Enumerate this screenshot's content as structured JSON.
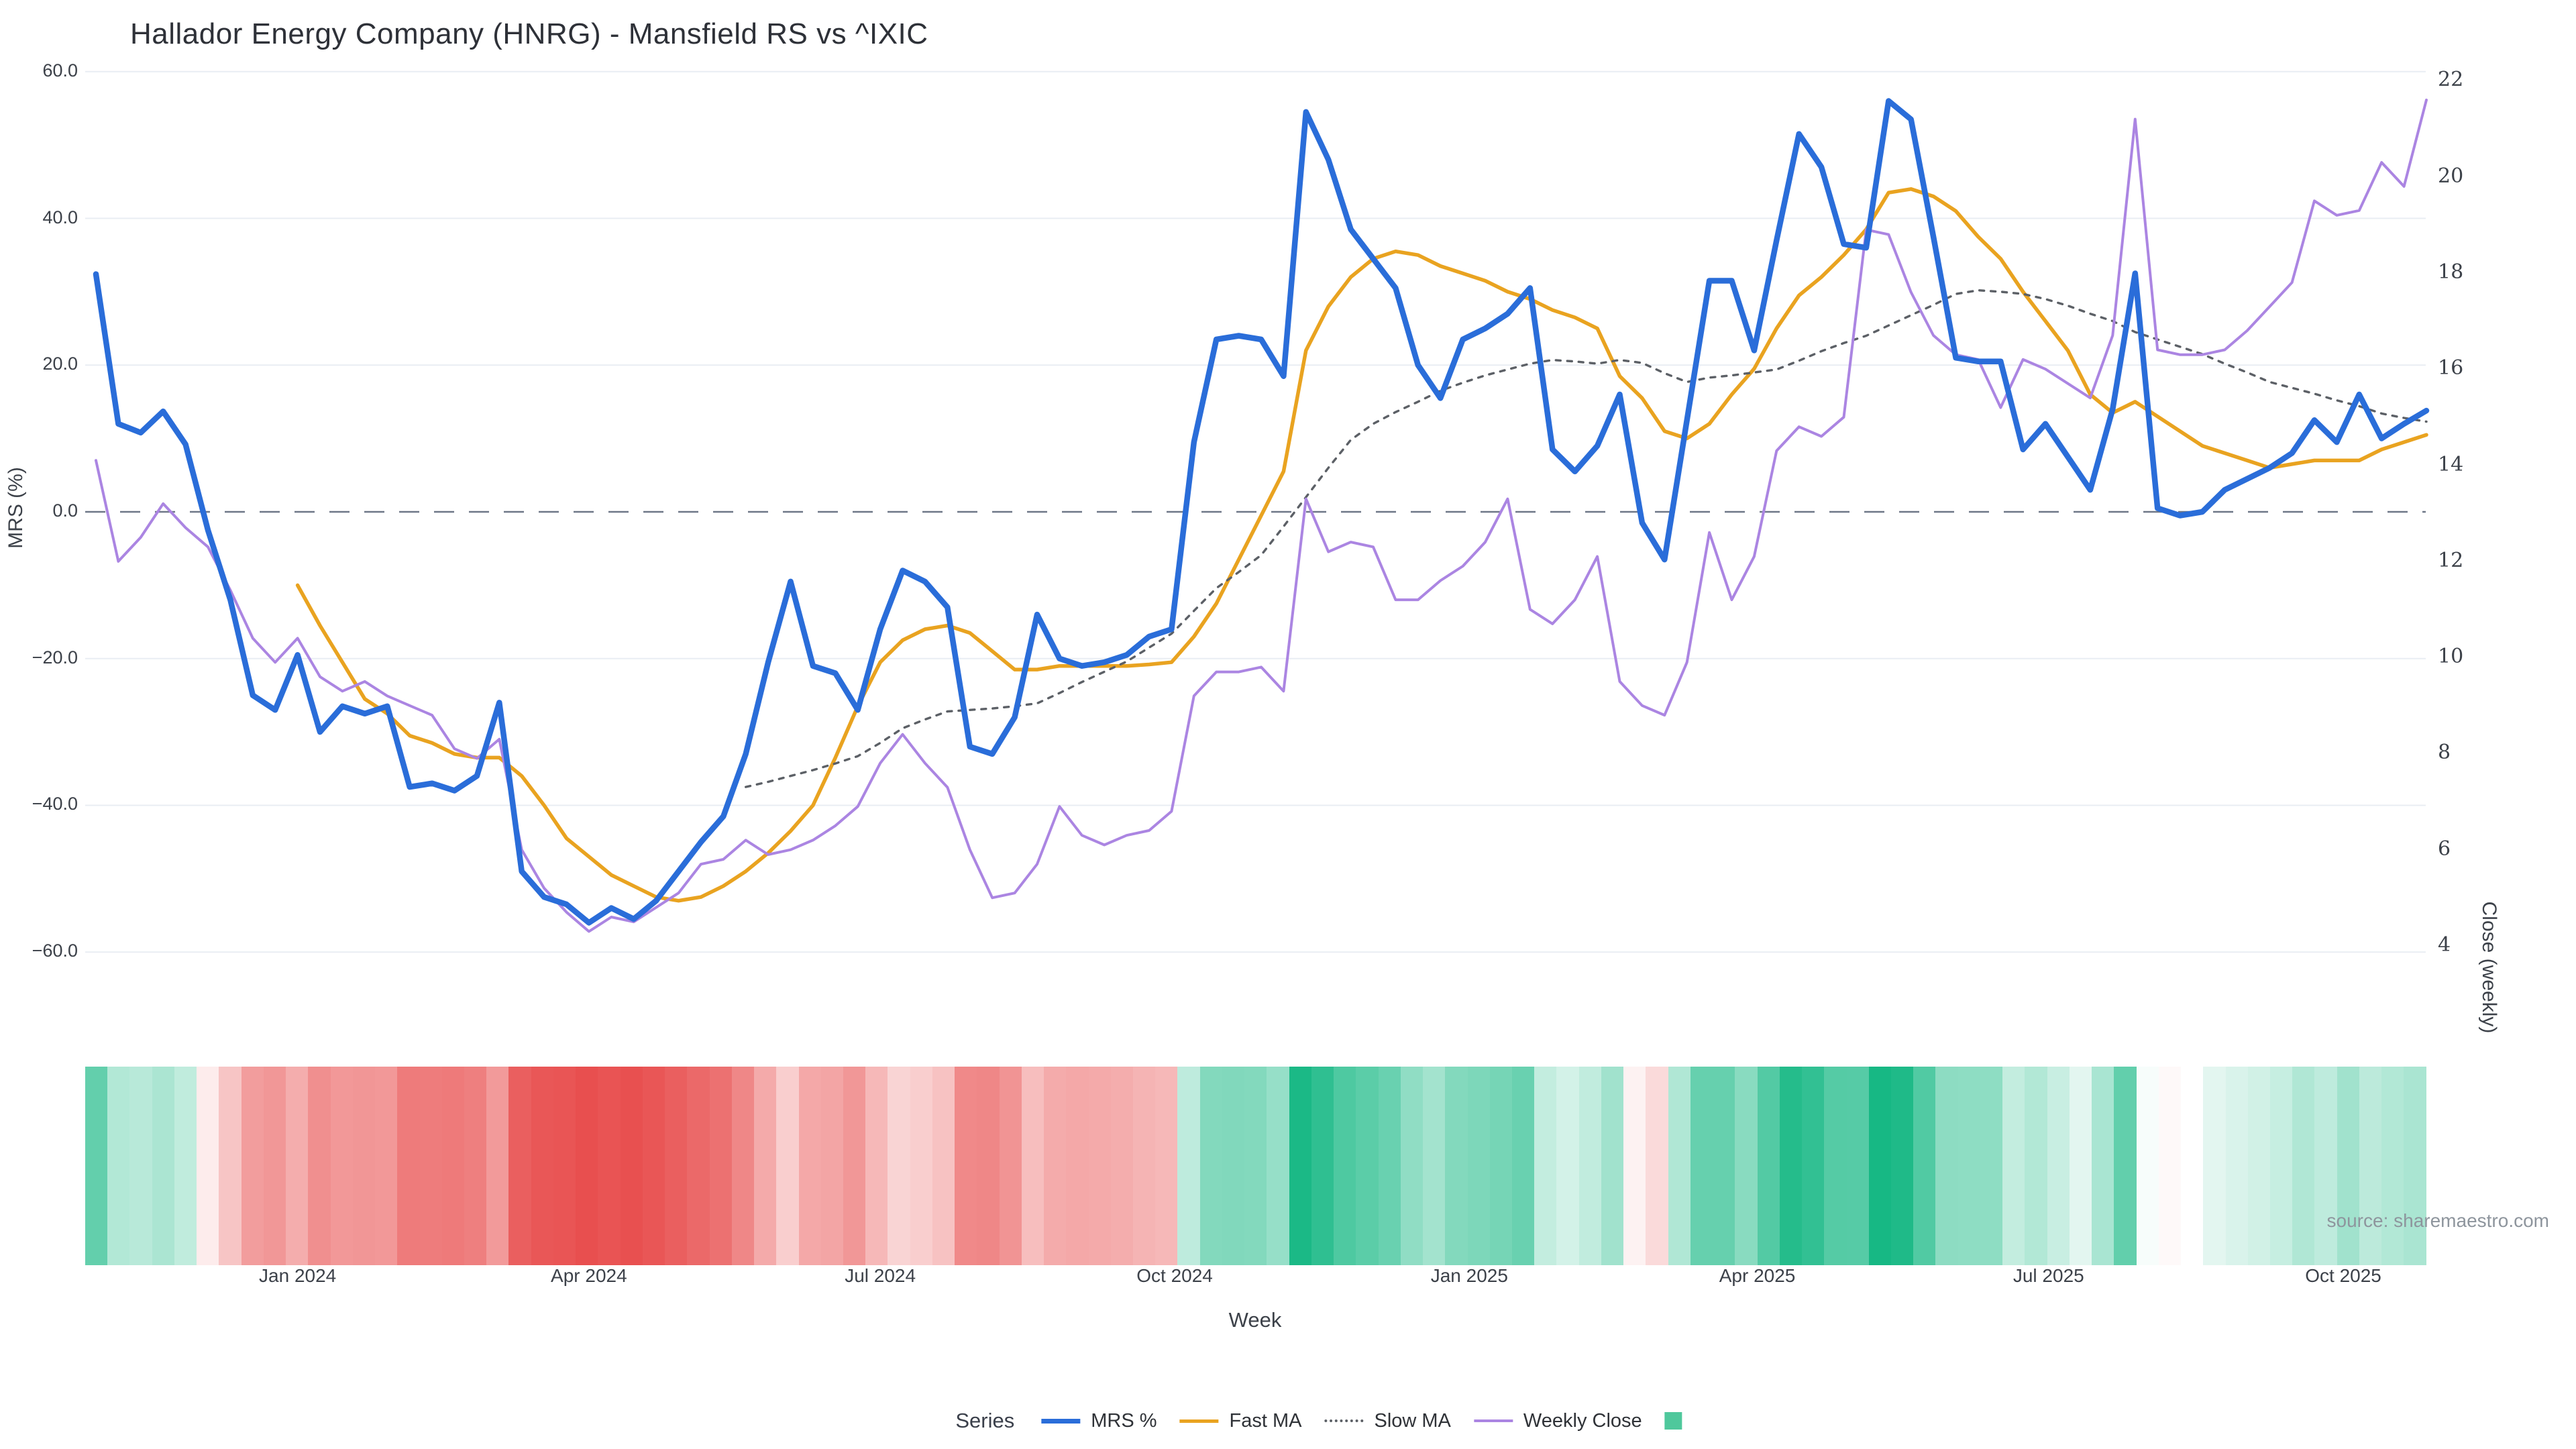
{
  "title": "Hallador Energy Company (HNRG) - Mansfield RS vs ^IXIC",
  "source_note": "source: sharemaestro.com",
  "axes": {
    "left_label": "MRS (%)",
    "right_label": "Close (weekly)",
    "x_label": "Week",
    "left_ticks": [
      {
        "label": "60.0",
        "value": 60
      },
      {
        "label": "40.0",
        "value": 40
      },
      {
        "label": "20.0",
        "value": 20
      },
      {
        "label": "0.0",
        "value": 0
      },
      {
        "label": "−20.0",
        "value": -20
      },
      {
        "label": "−40.0",
        "value": -40
      },
      {
        "label": "−60.0",
        "value": -60
      }
    ],
    "right_ticks": [
      {
        "label": "22",
        "value": 22
      },
      {
        "label": "20",
        "value": 20
      },
      {
        "label": "18",
        "value": 18
      },
      {
        "label": "16",
        "value": 16
      },
      {
        "label": "14",
        "value": 14
      },
      {
        "label": "12",
        "value": 12
      },
      {
        "label": "10",
        "value": 10
      },
      {
        "label": "8",
        "value": 8
      },
      {
        "label": "6",
        "value": 6
      },
      {
        "label": "4",
        "value": 4
      }
    ],
    "x_ticks": [
      {
        "label": "Jan 2024",
        "week": 9
      },
      {
        "label": "Apr 2024",
        "week": 22
      },
      {
        "label": "Jul 2024",
        "week": 35
      },
      {
        "label": "Oct 2024",
        "week": 48.14
      },
      {
        "label": "Jan 2025",
        "week": 61.29
      },
      {
        "label": "Apr 2025",
        "week": 74.14
      },
      {
        "label": "Jul 2025",
        "week": 87.14
      },
      {
        "label": "Oct 2025",
        "week": 100.29
      }
    ]
  },
  "legend": {
    "series_label": "Series",
    "items": [
      {
        "label": "MRS %",
        "swatch": "line",
        "color": "#2a6dd9",
        "thickness": 7
      },
      {
        "label": "Fast MA",
        "swatch": "line",
        "color": "#e9a320",
        "thickness": 5
      },
      {
        "label": "Slow MA",
        "swatch": "dotted",
        "color": "#5c6066",
        "thickness": 4
      },
      {
        "label": "Weekly Close",
        "swatch": "line",
        "color": "#ab85e2",
        "thickness": 4
      },
      {
        "label": "",
        "swatch": "square",
        "color": "#4fc89c",
        "thickness": 0
      }
    ]
  },
  "colors": {
    "mrs_line": "#2a6dd9",
    "fast_ma_line": "#e9a320",
    "slow_ma_line": "#5c6066",
    "weekly_close_line": "#ab85e2",
    "zero_line": "#6e7787",
    "gridline": "#e9edf3",
    "heatmap_positive": "#17b884",
    "heatmap_negative": "#e84f4f",
    "tick_text": "#3c4149",
    "title_text": "#2e3138",
    "source_text": "#8e959d"
  },
  "chart_data": {
    "type": "line",
    "x_unit": "week_index",
    "n_weeks": 105,
    "left_axis_range": [
      -60,
      60
    ],
    "right_axis_range": [
      4,
      22
    ],
    "grid": true,
    "legend_position": "bottom",
    "series": [
      {
        "name": "MRS %",
        "axis": "left",
        "start": 0,
        "values": [
          32.4,
          12,
          10.8,
          13.7,
          9.2,
          -2.5,
          -12,
          -25,
          -27,
          -19.5,
          -30,
          -26.5,
          -27.5,
          -26.5,
          -37.5,
          -37,
          -38,
          -36,
          -26,
          -49,
          -52.5,
          -53.5,
          -56,
          -54,
          -55.5,
          -53,
          -49,
          -45,
          -41.5,
          -33,
          -20.5,
          -9.5,
          -21,
          -22,
          -27,
          -16,
          -8,
          -9.5,
          -13,
          -32,
          -33,
          -28,
          -14,
          -20,
          -21,
          -20.5,
          -19.5,
          -17,
          -16,
          9.5,
          23.5,
          24,
          23.5,
          18.5,
          54.5,
          48,
          38.5,
          34.5,
          30.5,
          20,
          15.5,
          23.5,
          25,
          27,
          30.5,
          8.5,
          5.5,
          9,
          16,
          -1.5,
          -6.5,
          12.5,
          31.5,
          31.5,
          22,
          37,
          51.5,
          47,
          36.5,
          36,
          56,
          53.5,
          37.5,
          21,
          20.5,
          20.5,
          8.5,
          12,
          7.5,
          3,
          14,
          32.5,
          0.5,
          -0.5,
          0,
          3,
          4.5,
          6,
          8,
          12.5,
          9.5,
          16,
          10,
          12,
          13.8
        ]
      },
      {
        "name": "Fast MA",
        "axis": "left",
        "start": 9,
        "values": [
          -10,
          -15.5,
          -20.5,
          -25.5,
          -27.5,
          -30.5,
          -31.5,
          -33,
          -33.5,
          -33.5,
          -36,
          -40,
          -44.5,
          -47,
          -49.5,
          -51,
          -52.5,
          -53,
          -52.5,
          -51,
          -49,
          -46.5,
          -43.5,
          -40,
          -33.5,
          -26.5,
          -20.5,
          -17.5,
          -16,
          -15.5,
          -16.5,
          -19,
          -21.5,
          -21.5,
          -21,
          -21,
          -21,
          -21,
          -20.8,
          -20.5,
          -17,
          -12.5,
          -6.5,
          -0.5,
          5.5,
          22,
          28,
          32,
          34.5,
          35.5,
          35,
          33.5,
          32.5,
          31.5,
          30,
          29,
          27.5,
          26.5,
          25,
          18.5,
          15.5,
          11,
          10,
          12,
          16,
          19.5,
          25,
          29.5,
          32,
          35,
          38.5,
          43.5,
          44,
          43,
          41,
          37.5,
          34.5,
          30,
          26,
          22,
          16,
          13.5,
          15,
          13,
          11,
          9,
          8,
          7,
          6,
          6.5,
          7,
          7,
          7,
          8.5,
          9.5,
          10.5
        ]
      },
      {
        "name": "Slow MA",
        "axis": "left",
        "start": 29,
        "values": [
          -37.5,
          -36.8,
          -36,
          -35.2,
          -34.3,
          -33.3,
          -31.5,
          -29.5,
          -28.3,
          -27.2,
          -27,
          -26.8,
          -26.5,
          -26.1,
          -24.7,
          -23.2,
          -21.8,
          -20.4,
          -18.5,
          -16.6,
          -13.5,
          -10.4,
          -8.2,
          -5.9,
          -2,
          2,
          6,
          9.8,
          12,
          13.6,
          15,
          16.5,
          17.6,
          18.6,
          19.4,
          20.2,
          20.7,
          20.5,
          20.2,
          20.7,
          20.3,
          18.9,
          17.7,
          18.3,
          18.6,
          19,
          19.4,
          20.6,
          21.9,
          23,
          24,
          25.4,
          26.8,
          28.2,
          29.7,
          30.2,
          30,
          29.7,
          29,
          28.1,
          27,
          26,
          24.5,
          23.5,
          22.5,
          21.5,
          20.2,
          19,
          17.7,
          16.9,
          16.1,
          15.2,
          14.4,
          13.4,
          12.8,
          12.3
        ]
      },
      {
        "name": "Weekly Close",
        "axis": "right",
        "start": 0,
        "values": [
          14.1,
          12.0,
          12.5,
          13.2,
          12.7,
          12.3,
          11.4,
          10.4,
          9.9,
          10.4,
          9.6,
          9.3,
          9.5,
          9.2,
          9.0,
          8.8,
          8.1,
          7.9,
          8.3,
          6.0,
          5.2,
          4.7,
          4.3,
          4.6,
          4.5,
          4.8,
          5.1,
          5.7,
          5.8,
          6.2,
          5.9,
          6.0,
          6.2,
          6.5,
          6.9,
          7.8,
          8.4,
          7.8,
          7.3,
          6.0,
          5.0,
          5.1,
          5.7,
          6.9,
          6.3,
          6.1,
          6.3,
          6.4,
          6.8,
          9.2,
          9.7,
          9.7,
          9.8,
          9.3,
          13.3,
          12.2,
          12.4,
          12.3,
          11.2,
          11.2,
          11.6,
          11.9,
          12.4,
          13.3,
          11.0,
          10.7,
          11.2,
          12.1,
          9.5,
          9.0,
          8.8,
          9.9,
          12.6,
          11.2,
          12.1,
          14.3,
          14.8,
          14.6,
          15.0,
          18.9,
          18.8,
          17.6,
          16.7,
          16.3,
          16.2,
          15.2,
          16.2,
          16.0,
          15.7,
          15.4,
          16.7,
          21.2,
          16.4,
          16.3,
          16.3,
          16.4,
          16.8,
          17.3,
          17.8,
          19.5,
          19.2,
          19.3,
          20.3,
          19.8,
          21.6
        ]
      }
    ],
    "heatmap": {
      "name": "MRS heat strip",
      "derived_from": "MRS %",
      "positive_color": "#17b884",
      "negative_color": "#e84f4f",
      "max_abs": 56,
      "gamma": 0.72
    }
  }
}
